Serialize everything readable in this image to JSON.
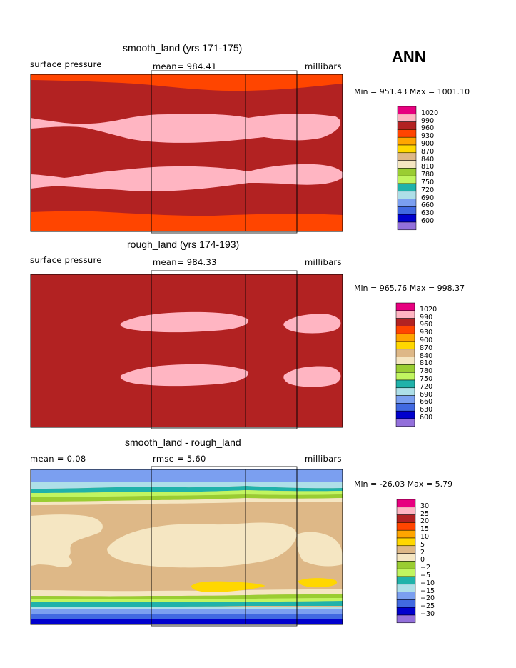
{
  "page": {
    "season": "ANN"
  },
  "palettes": {
    "abs": [
      "#e7007f",
      "#ffb5c2",
      "#b22222",
      "#ff4500",
      "#ffa500",
      "#ffd700",
      "#deb887",
      "#f5e6c2",
      "#9acd32",
      "#c1f560",
      "#20b2aa",
      "#aedfe8",
      "#7b9ff0",
      "#4169e1",
      "#0000cd",
      "#9370db"
    ],
    "diff": [
      "#e7007f",
      "#ffb5c2",
      "#b22222",
      "#ff4500",
      "#ffa500",
      "#ffd700",
      "#deb887",
      "#f5e6c2",
      "#9acd32",
      "#c1f560",
      "#20b2aa",
      "#aedfe8",
      "#7b9ff0",
      "#4169e1",
      "#0000cd",
      "#9370db"
    ]
  },
  "panels": [
    {
      "title": "smooth_land (yrs 171-175)",
      "left_label": "surface pressure",
      "center_label": "mean= 984.41",
      "right_label": "millibars",
      "minmax": "Min = 951.43 Max = 1001.10",
      "legend_labels": [
        "1020",
        "990",
        "960",
        "930",
        "900",
        "870",
        "840",
        "810",
        "780",
        "750",
        "720",
        "690",
        "660",
        "630",
        "600"
      ]
    },
    {
      "title": "rough_land (yrs 174-193)",
      "left_label": "surface pressure",
      "center_label": "mean= 984.33",
      "right_label": "millibars",
      "minmax": "Min = 965.76 Max = 998.37",
      "legend_labels": [
        "1020",
        "990",
        "960",
        "930",
        "900",
        "870",
        "840",
        "810",
        "780",
        "750",
        "720",
        "690",
        "660",
        "630",
        "600"
      ]
    },
    {
      "title": "smooth_land - rough_land",
      "left_label": "mean =    0.08",
      "center_label": "rmse =    5.60",
      "right_label": "millibars",
      "minmax": "Min = -26.03 Max =   5.79",
      "legend_labels": [
        "30",
        "25",
        "20",
        "15",
        "10",
        "5",
        "2",
        "0",
        "−2",
        "−5",
        "−10",
        "−15",
        "−20",
        "−25",
        "−30"
      ]
    }
  ]
}
